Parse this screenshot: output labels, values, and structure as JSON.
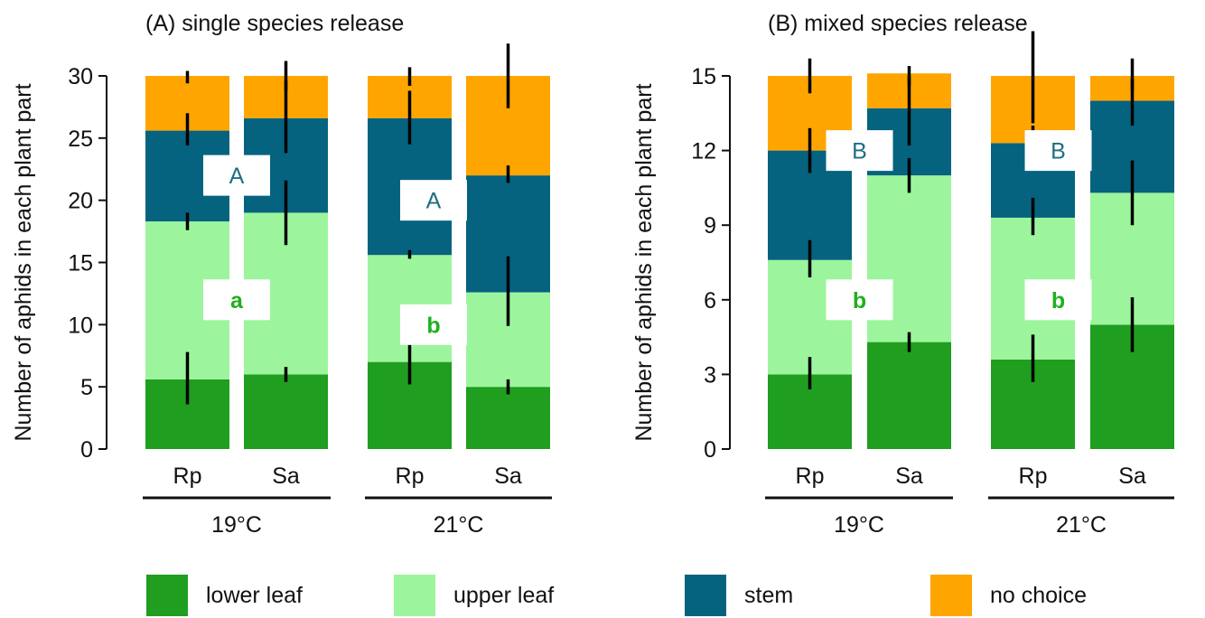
{
  "colors": {
    "lower leaf": "#1f9e1f",
    "upper leaf": "#9cf59c",
    "stem": "#05637f",
    "no choice": "#ffa500",
    "letter_upper": "#1f6e82",
    "letter_lower": "#1fb01f"
  },
  "legend": {
    "items": [
      {
        "label": "lower leaf",
        "color": "#1f9e1f"
      },
      {
        "label": "upper leaf",
        "color": "#9cf59c"
      },
      {
        "label": "stem",
        "color": "#05637f"
      },
      {
        "label": "no choice",
        "color": "#ffa500"
      }
    ]
  },
  "chart_data": [
    {
      "type": "bar",
      "stacked": true,
      "title": "(A) single species release",
      "ylabel": "Number of aphids in each plant part",
      "ylim": [
        0,
        30
      ],
      "yticks": [
        0,
        5,
        10,
        15,
        20,
        25,
        30
      ],
      "categories": [
        "Rp",
        "Sa",
        "Rp",
        "Sa"
      ],
      "groups": [
        {
          "label": "19°C",
          "bars": [
            0,
            1
          ]
        },
        {
          "label": "21°C",
          "bars": [
            2,
            3
          ]
        }
      ],
      "series": [
        {
          "name": "lower leaf",
          "values": [
            5.6,
            6.0,
            7.0,
            5.0
          ],
          "err_low": [
            3.6,
            5.4,
            5.2,
            4.4
          ],
          "err_high": [
            7.8,
            6.6,
            8.8,
            5.6
          ]
        },
        {
          "name": "upper leaf",
          "values": [
            12.7,
            13.0,
            8.6,
            7.6
          ],
          "err_low": [
            17.6,
            16.4,
            15.3,
            9.9
          ],
          "err_high": [
            19.0,
            21.6,
            16.0,
            15.5
          ]
        },
        {
          "name": "stem",
          "values": [
            7.3,
            7.6,
            11.0,
            9.4
          ],
          "err_low": [
            24.4,
            23.8,
            24.5,
            21.4
          ],
          "err_high": [
            27.0,
            29.6,
            28.8,
            22.8
          ]
        },
        {
          "name": "no choice",
          "values": [
            4.4,
            3.4,
            3.4,
            8.0
          ],
          "err_low": [
            29.4,
            28.8,
            29.2,
            27.4
          ],
          "err_high": [
            30.4,
            31.2,
            30.7,
            32.6
          ]
        }
      ],
      "letters": [
        {
          "text": "A",
          "bar_index": 0.5,
          "y": 22,
          "kind": "upper"
        },
        {
          "text": "a",
          "bar_index": 0.5,
          "y": 12,
          "kind": "lower"
        },
        {
          "text": "A",
          "bar_index": 2.5,
          "y": 20,
          "kind": "upper"
        },
        {
          "text": "b",
          "bar_index": 2.5,
          "y": 10,
          "kind": "lower"
        }
      ]
    },
    {
      "type": "bar",
      "stacked": true,
      "title": "(B) mixed species release",
      "ylabel": "Number of aphids in each plant part",
      "ylim": [
        0,
        15
      ],
      "yticks": [
        0,
        3,
        6,
        9,
        12,
        15
      ],
      "categories": [
        "Rp",
        "Sa",
        "Rp",
        "Sa"
      ],
      "groups": [
        {
          "label": "19°C",
          "bars": [
            0,
            1
          ]
        },
        {
          "label": "21°C",
          "bars": [
            2,
            3
          ]
        }
      ],
      "series": [
        {
          "name": "lower leaf",
          "values": [
            3.0,
            4.3,
            3.6,
            5.0
          ],
          "err_low": [
            2.4,
            3.9,
            2.7,
            3.9
          ],
          "err_high": [
            3.7,
            4.7,
            4.6,
            6.1
          ]
        },
        {
          "name": "upper leaf",
          "values": [
            4.6,
            6.7,
            5.7,
            5.3
          ],
          "err_low": [
            6.9,
            10.3,
            8.6,
            9.0
          ],
          "err_high": [
            8.4,
            11.7,
            10.1,
            11.6
          ]
        },
        {
          "name": "stem",
          "values": [
            4.4,
            2.7,
            3.0,
            3.7
          ],
          "err_low": [
            11.1,
            12.2,
            11.7,
            13.0
          ],
          "err_high": [
            12.9,
            15.0,
            13.0,
            14.9
          ]
        },
        {
          "name": "no choice",
          "values": [
            3.0,
            1.4,
            2.7,
            1.0
          ],
          "err_low": [
            14.3,
            14.6,
            13.1,
            14.4
          ],
          "err_high": [
            15.7,
            15.4,
            16.8,
            15.7
          ]
        }
      ],
      "letters": [
        {
          "text": "B",
          "bar_index": 0.5,
          "y": 12,
          "kind": "upper"
        },
        {
          "text": "b",
          "bar_index": 0.5,
          "y": 6,
          "kind": "lower"
        },
        {
          "text": "B",
          "bar_index": 2.5,
          "y": 12,
          "kind": "upper"
        },
        {
          "text": "b",
          "bar_index": 2.5,
          "y": 6,
          "kind": "lower"
        }
      ]
    }
  ]
}
